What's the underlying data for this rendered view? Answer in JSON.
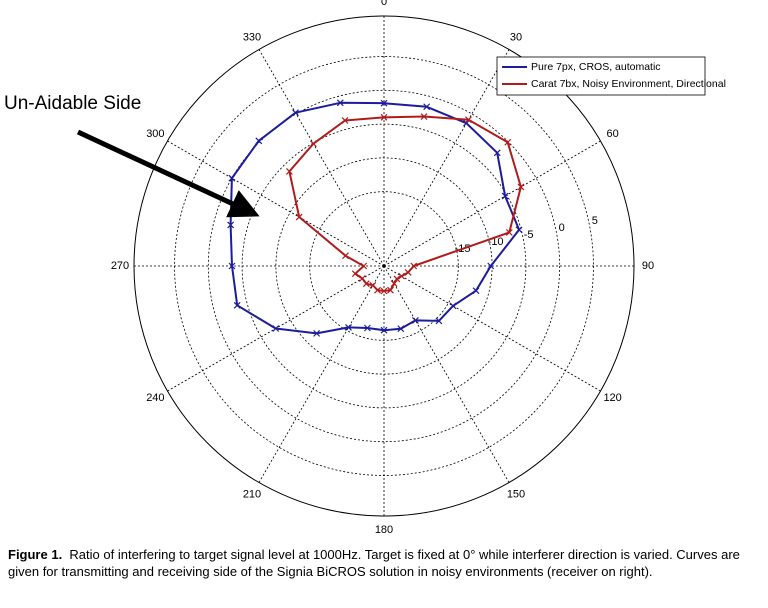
{
  "chart_data": {
    "type": "polar",
    "annotation": "Un-Aidable Side",
    "theta": [
      0,
      15,
      30,
      45,
      60,
      75,
      90,
      105,
      120,
      135,
      150,
      165,
      180,
      195,
      210,
      225,
      240,
      255,
      270,
      285,
      300,
      315,
      330,
      345
    ],
    "thetaticks": [
      0,
      30,
      60,
      90,
      120,
      150,
      180,
      210,
      240,
      270,
      300,
      330
    ],
    "rlim": [
      -26,
      11
    ],
    "rticks": [
      -15,
      -10,
      -5,
      0,
      5
    ],
    "grid": true,
    "legend": "top-right",
    "series": [
      {
        "name": "Pure 7px, CROS, automatic",
        "color": "#1c1c9c",
        "values": [
          -1.9,
          -1.6,
          -1.6,
          -2.3,
          -5.3,
          -5.3,
          -10.2,
          -11.9,
          -14.2,
          -14.5,
          -16.7,
          -16.4,
          -16.5,
          -16.5,
          -15.5,
          -11.9,
          -7.5,
          -3.5,
          -3.5,
          -2.5,
          0,
          0.2,
          0.2,
          -1.0
        ]
      },
      {
        "name": "Carat 7bx, Noisy Environment, Directional",
        "color": "#b01c1c",
        "values": [
          -4.0,
          -3.1,
          -1.0,
          -0.1,
          -2.6,
          -6.8,
          -21.6,
          -22.3,
          -23.0,
          -23.3,
          -23.0,
          -22.3,
          -22.3,
          -22.3,
          -22.7,
          -22.3,
          -22.3,
          -21.6,
          -23.0,
          -20.1,
          -11.5,
          -6.2,
          -5.1,
          -3.7
        ]
      }
    ]
  },
  "caption": {
    "label": "Figure 1.",
    "text": "Ratio of interfering to target signal level at 1000Hz. Target is fixed at 0° while interferer direction is varied. Curves are given for transmitting and receiving side of the Signia BiCROS solution in noisy environments (receiver on right)."
  }
}
